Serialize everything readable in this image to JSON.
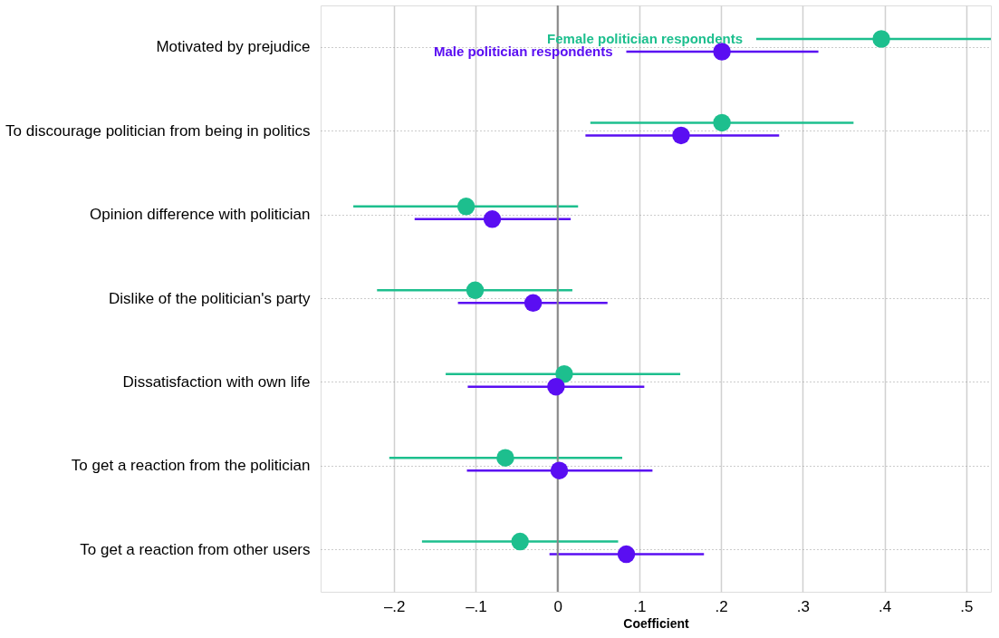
{
  "chart_data": {
    "type": "scatter",
    "orientation": "horizontal",
    "xlabel": "Coefficient",
    "categories": [
      "Motivated by prejudice",
      "To discourage politician from being in politics",
      "Opinion difference with politician",
      "Dislike of the politician's party",
      "Dissatisfaction with own life",
      "To get a reaction from the politician",
      "To get a reaction from other users"
    ],
    "series": [
      {
        "name": "Female politician respondents",
        "color": "#1dbf8e",
        "values": [
          0.396,
          0.201,
          -0.112,
          -0.101,
          0.008,
          -0.064,
          -0.046
        ],
        "errors": [
          [
            0.243,
            0.53
          ],
          [
            0.04,
            0.362
          ],
          [
            -0.25,
            0.025
          ],
          [
            -0.221,
            0.018
          ],
          [
            -0.137,
            0.15
          ],
          [
            -0.206,
            0.079
          ],
          [
            -0.166,
            0.074
          ]
        ]
      },
      {
        "name": "Male politician respondents",
        "color": "#5a0ef2",
        "values": [
          0.201,
          0.151,
          -0.08,
          -0.03,
          -0.002,
          0.002,
          0.084
        ],
        "errors": [
          [
            0.084,
            0.319
          ],
          [
            0.034,
            0.271
          ],
          [
            -0.175,
            0.016
          ],
          [
            -0.122,
            0.061
          ],
          [
            -0.11,
            0.106
          ],
          [
            -0.111,
            0.116
          ],
          [
            -0.01,
            0.179
          ]
        ]
      }
    ],
    "xlim": [
      -0.29,
      0.53
    ],
    "xticks": [
      {
        "value": -0.2,
        "label": "–.2"
      },
      {
        "value": -0.1,
        "label": "–.1"
      },
      0,
      {
        "value": 0.1,
        "label": ".1"
      },
      {
        "value": 0.2,
        "label": ".2"
      },
      {
        "value": 0.3,
        "label": ".3"
      },
      {
        "value": 0.4,
        "label": ".4"
      },
      {
        "value": 0.5,
        "label": ".5"
      }
    ],
    "ref_lines": [
      {
        "axis": "x",
        "value": 0,
        "color": "#888888"
      }
    ],
    "grid": true,
    "marker": "circle"
  }
}
